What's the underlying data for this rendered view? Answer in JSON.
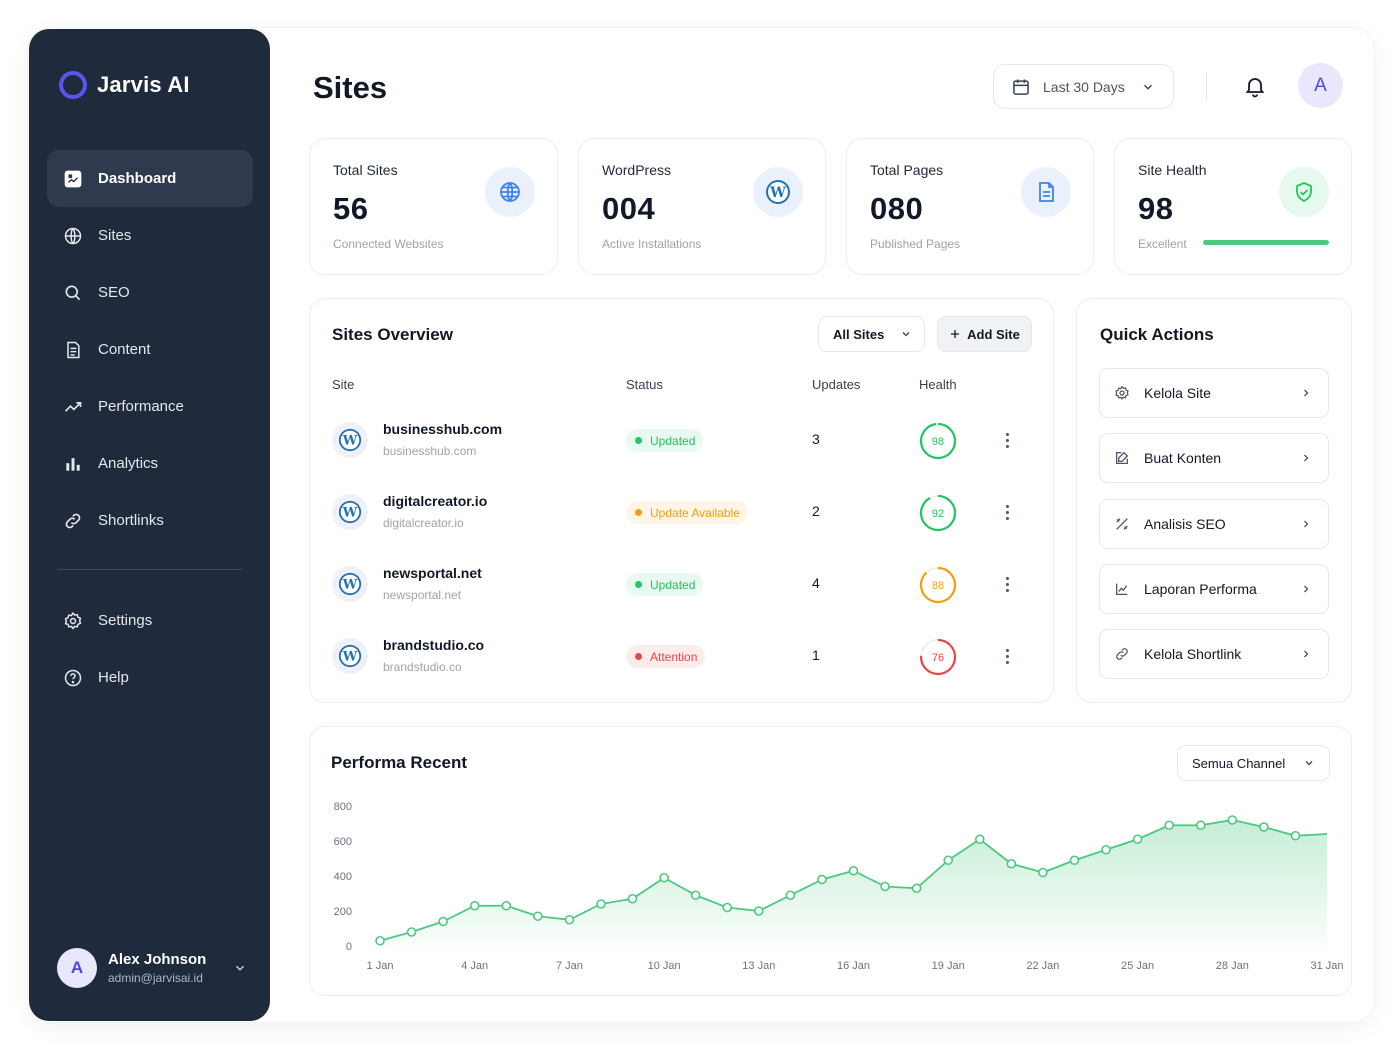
{
  "app": {
    "name": "Jarvis AI"
  },
  "sidebar": {
    "items": [
      {
        "label": "Dashboard",
        "icon": "dashboard-icon",
        "active": true
      },
      {
        "label": "Sites",
        "icon": "globe-icon"
      },
      {
        "label": "SEO",
        "icon": "search-icon"
      },
      {
        "label": "Content",
        "icon": "document-icon"
      },
      {
        "label": "Performance",
        "icon": "trend-icon"
      },
      {
        "label": "Analytics",
        "icon": "bar-chart-icon"
      },
      {
        "label": "Shortlinks",
        "icon": "link-icon"
      }
    ],
    "secondary": [
      {
        "label": "Settings",
        "icon": "gear-icon"
      },
      {
        "label": "Help",
        "icon": "help-icon"
      }
    ],
    "user": {
      "initial": "A",
      "name": "Alex Johnson",
      "email": "admin@jarvisai.id"
    }
  },
  "header": {
    "title": "Sites",
    "date_range": "Last 30 Days",
    "avatar_initial": "A"
  },
  "stats": [
    {
      "label": "Total Sites",
      "value": "56",
      "sub": "Connected Websites",
      "icon": "globe-icon"
    },
    {
      "label": "WordPress",
      "value": "004",
      "sub": "Active Installations",
      "icon": "wordpress-icon"
    },
    {
      "label": "Total Pages",
      "value": "080",
      "sub": "Published Pages",
      "icon": "document-icon"
    },
    {
      "label": "Site Health",
      "value": "98",
      "sub": "Excellent",
      "icon": "shield-check-icon",
      "progress": 1.0
    }
  ],
  "overview": {
    "title": "Sites Overview",
    "filter": "All Sites",
    "add_label": "Add Site",
    "columns": [
      "Site",
      "Status",
      "Updates",
      "Health"
    ],
    "rows": [
      {
        "name": "businesshub.com",
        "domain": "businesshub.com",
        "status": "Updated",
        "status_color": "#22c55e",
        "updates": "3",
        "health": "98",
        "health_color": "#22c55e"
      },
      {
        "name": "digitalcreator.io",
        "domain": "digitalcreator.io",
        "status": "Update Available",
        "status_color": "#f59e0b",
        "updates": "2",
        "health": "92",
        "health_color": "#22c55e"
      },
      {
        "name": "newsportal.net",
        "domain": "newsportal.net",
        "status": "Updated",
        "status_color": "#22c55e",
        "updates": "4",
        "health": "88",
        "health_color": "#f59e0b"
      },
      {
        "name": "brandstudio.co",
        "domain": "brandstudio.co",
        "status": "Attention",
        "status_color": "#ef4444",
        "updates": "1",
        "health": "76",
        "health_color": "#ef4444"
      }
    ]
  },
  "quick_actions": {
    "title": "Quick Actions",
    "items": [
      {
        "label": "Kelola Site",
        "icon": "gear-icon"
      },
      {
        "label": "Buat Konten",
        "icon": "edit-icon"
      },
      {
        "label": "Analisis SEO",
        "icon": "tools-icon"
      },
      {
        "label": "Laporan Performa",
        "icon": "chart-line-icon"
      },
      {
        "label": "Kelola Shortlink",
        "icon": "link-icon"
      }
    ]
  },
  "performance": {
    "title": "Performa Recent",
    "channel": "Semua Channel"
  },
  "chart_data": {
    "type": "area",
    "title": "Performa Recent",
    "x": [
      "1 Jan",
      "2 Jan",
      "3 Jan",
      "4 Jan",
      "5 Jan",
      "6 Jan",
      "7 Jan",
      "8 Jan",
      "9 Jan",
      "10 Jan",
      "11 Jan",
      "12 Jan",
      "13 Jan",
      "14 Jan",
      "15 Jan",
      "16 Jan",
      "17 Jan",
      "18 Jan",
      "19 Jan",
      "20 Jan",
      "21 Jan",
      "22 Jan",
      "23 Jan",
      "24 Jan",
      "25 Jan",
      "26 Jan",
      "27 Jan",
      "28 Jan",
      "29 Jan",
      "30 Jan",
      "31 Jan"
    ],
    "x_tick_labels": [
      "1 Jan",
      "4 Jan",
      "7 Jan",
      "10 Jan",
      "13 Jan",
      "16 Jan",
      "19 Jan",
      "22 Jan",
      "25 Jan",
      "28 Jan",
      "31 Jan"
    ],
    "values": [
      30,
      80,
      140,
      230,
      230,
      170,
      150,
      240,
      270,
      390,
      290,
      220,
      200,
      290,
      380,
      430,
      340,
      330,
      490,
      610,
      470,
      420,
      490,
      550,
      610,
      690,
      690,
      720,
      680,
      630,
      640
    ],
    "y_ticks": [
      "800",
      "600",
      "400",
      "200",
      "0"
    ],
    "ylim": [
      0,
      800
    ],
    "color": "#4cc97e",
    "grid": false
  }
}
